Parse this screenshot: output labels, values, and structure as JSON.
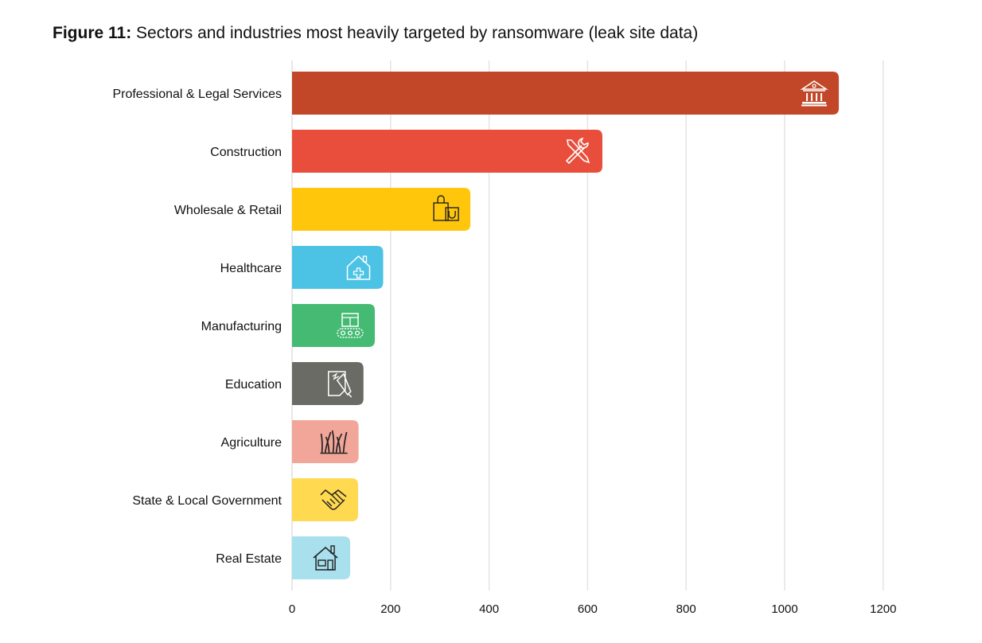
{
  "title": {
    "prefix": "Figure 11:",
    "text": "Sectors and industries most heavily targeted by ransomware (leak site data)"
  },
  "chart_data": {
    "type": "bar",
    "orientation": "horizontal",
    "title": "Figure 11: Sectors and industries most heavily targeted by ransomware (leak site data)",
    "xlabel": "",
    "ylabel": "",
    "xlim": [
      0,
      1200
    ],
    "ticks": [
      0,
      200,
      400,
      600,
      800,
      1000,
      1200
    ],
    "grid": true,
    "legend": "none",
    "categories": [
      "Professional & Legal Services",
      "Construction",
      "Wholesale & Retail",
      "Healthcare",
      "Manufacturing",
      "Education",
      "Agriculture",
      "State & Local Government",
      "Real Estate"
    ],
    "values": [
      1110,
      630,
      362,
      185,
      168,
      145,
      135,
      134,
      118
    ],
    "colors": [
      "#c14728",
      "#e84e3b",
      "#ffc60b",
      "#4cc3e5",
      "#44ba73",
      "#6a6b64",
      "#f2a599",
      "#ffd94f",
      "#a8e0ee"
    ],
    "icons": [
      "bank-icon",
      "tools-icon",
      "shopping-bags-icon",
      "medical-house-icon",
      "conveyor-icon",
      "document-pen-icon",
      "grass-icon",
      "handshake-icon",
      "house-icon"
    ],
    "icon_colors": [
      "#ffffff",
      "#ffffff",
      "#222222",
      "#ffffff",
      "#ffffff",
      "#ffffff",
      "#222222",
      "#222222",
      "#222222"
    ]
  }
}
